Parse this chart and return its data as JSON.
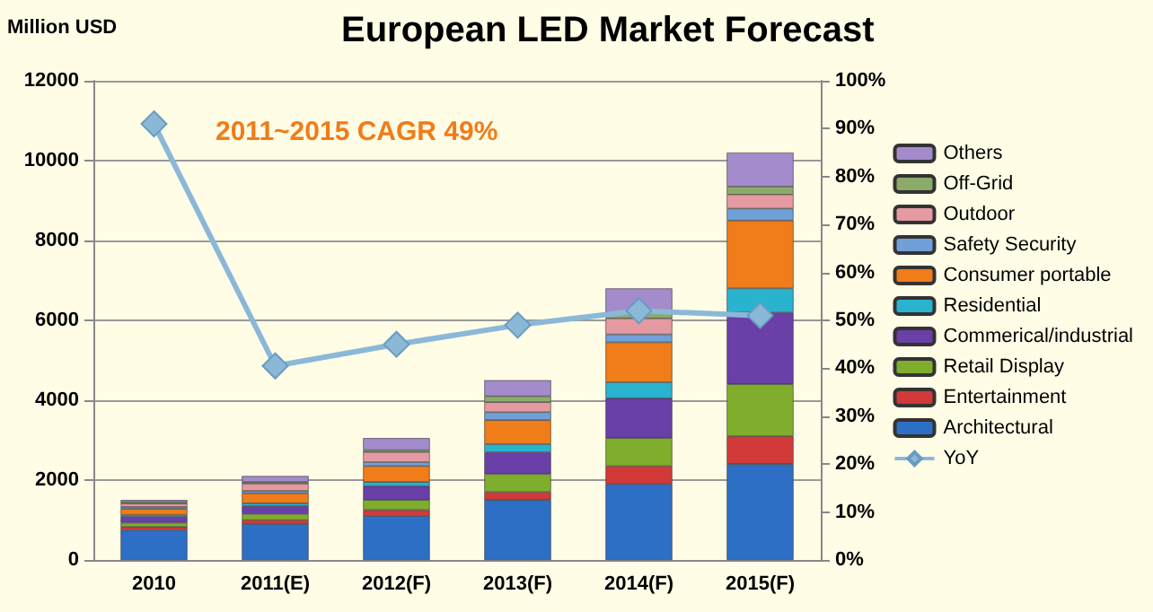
{
  "chart_data": {
    "type": "bar",
    "title": "European LED Market Forecast",
    "ylabel": "Million USD",
    "categories": [
      "2010",
      "2011(E)",
      "2012(F)",
      "2013(F)",
      "2014(F)",
      "2015(F)"
    ],
    "stacked": true,
    "series": [
      {
        "name": "Architectural",
        "color": "#2e6fc6",
        "values": [
          750,
          900,
          1100,
          1500,
          1900,
          2400
        ]
      },
      {
        "name": "Entertainment",
        "color": "#d23a3a",
        "values": [
          80,
          100,
          150,
          200,
          450,
          700
        ]
      },
      {
        "name": "Retail Display",
        "color": "#7fae2c",
        "values": [
          100,
          150,
          250,
          450,
          700,
          1300
        ]
      },
      {
        "name": "Commerical/industrial",
        "color": "#6a3fa8",
        "values": [
          150,
          200,
          350,
          550,
          1000,
          1800
        ]
      },
      {
        "name": "Residential",
        "color": "#2ab3cf",
        "values": [
          50,
          70,
          100,
          200,
          400,
          600
        ]
      },
      {
        "name": "Consumer portable",
        "color": "#f07c1a",
        "values": [
          150,
          250,
          400,
          600,
          1000,
          1700
        ]
      },
      {
        "name": "Safety Security",
        "color": "#6fa0d8",
        "values": [
          50,
          60,
          100,
          200,
          200,
          300
        ]
      },
      {
        "name": "Outdoor",
        "color": "#e59aa2",
        "values": [
          80,
          180,
          250,
          250,
          400,
          350
        ]
      },
      {
        "name": "Off-Grid",
        "color": "#8cab6a",
        "values": [
          40,
          40,
          50,
          150,
          150,
          200
        ]
      },
      {
        "name": "Others",
        "color": "#a48bcc",
        "values": [
          50,
          150,
          300,
          400,
          600,
          850
        ]
      },
      {
        "name": "YoY",
        "type": "line",
        "axis": "y2",
        "color": "#8cb8d8",
        "marker": "diamond",
        "values": [
          91,
          40.5,
          45,
          49,
          52,
          51
        ]
      }
    ],
    "ylim": [
      0,
      12000
    ],
    "yticks": [
      0,
      2000,
      4000,
      6000,
      8000,
      10000,
      12000
    ],
    "y2lim": [
      0,
      100
    ],
    "y2ticks": [
      {
        "value": 0,
        "label": "0%"
      },
      {
        "value": 10,
        "label": "10%"
      },
      {
        "value": 20,
        "label": "20%"
      },
      {
        "value": 30,
        "label": "30%"
      },
      {
        "value": 40,
        "label": "40%"
      },
      {
        "value": 50,
        "label": "50%"
      },
      {
        "value": 60,
        "label": "60%"
      },
      {
        "value": 70,
        "label": "70%"
      },
      {
        "value": 80,
        "label": "80%"
      },
      {
        "value": 90,
        "label": "90%"
      },
      {
        "value": 100,
        "label": "100%"
      }
    ],
    "grid": "y",
    "legend": "right",
    "annotations": [
      "2011~2015 CAGR 49%"
    ]
  }
}
